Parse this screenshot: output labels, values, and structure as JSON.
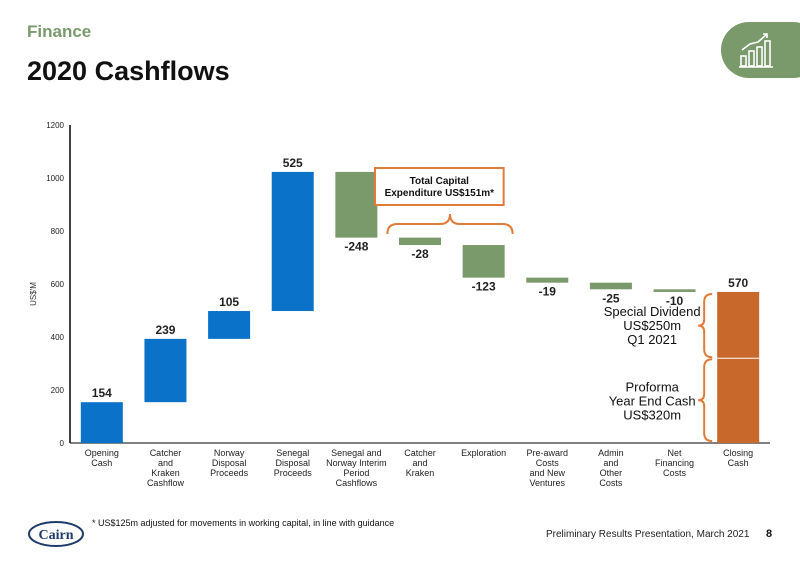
{
  "header": {
    "section": "Finance",
    "title": "2020 Cashflows"
  },
  "chart_data": {
    "type": "waterfall",
    "ylabel": "US$'M",
    "ylim": [
      0,
      1200
    ],
    "yticks": [
      "0",
      "200",
      "400",
      "600",
      "800",
      "1000",
      "1200"
    ],
    "steps": [
      {
        "category": "Opening Cash",
        "lines": [
          "Opening",
          "Cash"
        ],
        "start": 0,
        "end": 154,
        "label": "154",
        "color": "#0a72c8"
      },
      {
        "category": "Catcher and Kraken Cashflow",
        "lines": [
          "Catcher",
          "and",
          "Kraken",
          "Cashflow"
        ],
        "start": 154,
        "end": 393,
        "label": "239",
        "color": "#0a72c8"
      },
      {
        "category": "Norway Disposal Proceeds",
        "lines": [
          "Norway",
          "Disposal",
          "Proceeds"
        ],
        "start": 393,
        "end": 498,
        "label": "105",
        "color": "#0a72c8"
      },
      {
        "category": "Senegal Disposal Proceeds",
        "lines": [
          "Senegal",
          "Disposal",
          "Proceeds"
        ],
        "start": 498,
        "end": 1023,
        "label": "525",
        "color": "#0a72c8"
      },
      {
        "category": "Senegal and Norway Interim Period Cashflows",
        "lines": [
          "Senegal and",
          "Norway Interim",
          "Period",
          "Cashflows"
        ],
        "start": 1023,
        "end": 775,
        "label": "-248",
        "color": "#7a9a6b"
      },
      {
        "category": "Catcher and Kraken",
        "lines": [
          "Catcher",
          "and",
          "Kraken"
        ],
        "start": 775,
        "end": 747,
        "label": "-28",
        "color": "#7a9a6b"
      },
      {
        "category": "Exploration",
        "lines": [
          "Exploration"
        ],
        "start": 747,
        "end": 624,
        "label": "-123",
        "color": "#7a9a6b"
      },
      {
        "category": "Pre-award Costs and New Ventures",
        "lines": [
          "Pre-award",
          "Costs",
          "and New",
          "Ventures"
        ],
        "start": 624,
        "end": 605,
        "label": "-19",
        "color": "#7a9a6b"
      },
      {
        "category": "Admin and Other Costs",
        "lines": [
          "Admin",
          "and",
          "Other",
          "Costs"
        ],
        "start": 605,
        "end": 580,
        "label": "-25",
        "color": "#7a9a6b"
      },
      {
        "category": "Net Financing Costs",
        "lines": [
          "Net",
          "Financing",
          "Costs"
        ],
        "start": 580,
        "end": 570,
        "label": "-10",
        "color": "#7a9a6b"
      },
      {
        "category": "Closing Cash",
        "lines": [
          "Closing",
          "Cash"
        ],
        "start": 0,
        "end": 570,
        "label": "570",
        "color": "#c8682a"
      }
    ],
    "closing_split": 320,
    "annotations": {
      "capex_box": [
        "Total Capital",
        "Expenditure US$151m*"
      ],
      "dividend": [
        "Special Dividend",
        "US$250m",
        "Q1 2021"
      ],
      "proforma": [
        "Proforma",
        "Year End Cash",
        "US$320m"
      ]
    },
    "colors": {
      "accent_orange": "#e07b39",
      "green": "#7a9a6b",
      "blue": "#0a72c8"
    }
  },
  "footer": {
    "footnote": "* US$125m adjusted for movements in working capital, in line with guidance",
    "presentation": "Preliminary Results Presentation, March 2021",
    "page": "8",
    "logo_text": "Cairn"
  }
}
